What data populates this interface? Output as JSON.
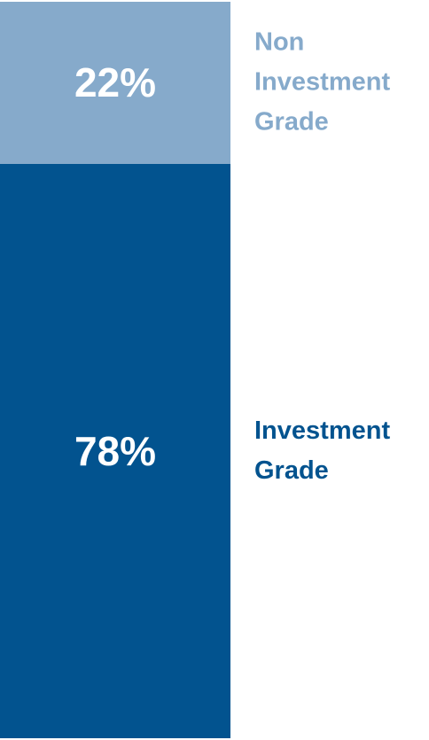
{
  "chart_data": {
    "type": "stacked_bar",
    "series": [
      {
        "name": "Investment Grade",
        "color": "#02538f",
        "values": [
          78
        ],
        "value_labels": [
          "78%"
        ]
      },
      {
        "name": "Non Investment Grade",
        "color": "#86aacb",
        "values": [
          22
        ],
        "value_labels": [
          "22%"
        ]
      }
    ],
    "ylim": [
      0,
      100
    ]
  }
}
